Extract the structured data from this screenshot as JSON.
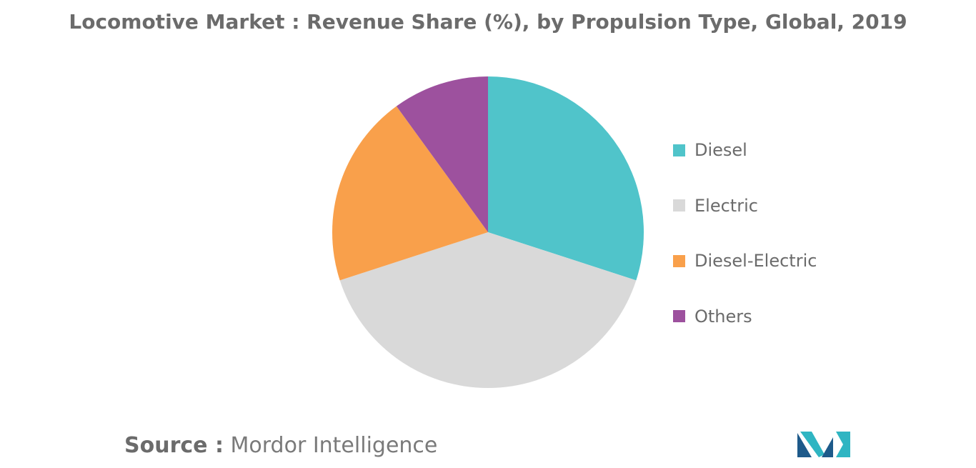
{
  "chart_data": {
    "type": "pie",
    "title": "Locomotive Market : Revenue Share (%), by Propulsion Type, Global, 2019",
    "categories": [
      "Diesel",
      "Electric",
      "Diesel-Electric",
      "Others"
    ],
    "values": [
      30,
      40,
      20,
      10
    ],
    "colors": [
      "#50c4ca",
      "#d9d9d9",
      "#f9a04b",
      "#9d519e"
    ],
    "start_angle_deg": 0,
    "direction": "clockwise",
    "legend_position": "right"
  },
  "source": {
    "prefix": "Source :",
    "name": "Mordor Intelligence"
  },
  "logo": {
    "colors": [
      "#1e5a8a",
      "#2fb5c2"
    ]
  }
}
